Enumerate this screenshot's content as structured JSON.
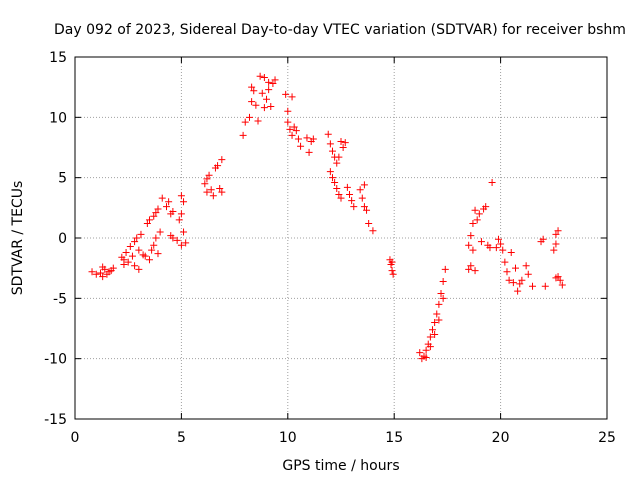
{
  "chart_data": {
    "type": "scatter",
    "title": "Day 092 of 2023, Sidereal Day-to-day VTEC variation (SDTVAR) for receiver bshm",
    "xlabel": "GPS time / hours",
    "ylabel": "SDTVAR / TECUs",
    "xlim": [
      0,
      25
    ],
    "ylim": [
      -15,
      15
    ],
    "xticks": [
      0,
      5,
      10,
      15,
      20,
      25
    ],
    "yticks": [
      -15,
      -10,
      -5,
      0,
      5,
      10,
      15
    ],
    "xtick_labels": [
      "0",
      "5",
      "10",
      "15",
      "20",
      "25"
    ],
    "ytick_labels": [
      "-15",
      "-10",
      "-5",
      "0",
      "5",
      "10",
      "15"
    ],
    "grid": true,
    "marker": "+",
    "color": "#ff0000",
    "series": [
      {
        "name": "SDTVAR",
        "points": [
          [
            0.8,
            -2.8
          ],
          [
            1.0,
            -3.0
          ],
          [
            1.2,
            -2.9
          ],
          [
            1.3,
            -2.4
          ],
          [
            1.3,
            -3.2
          ],
          [
            1.4,
            -2.6
          ],
          [
            1.5,
            -3.0
          ],
          [
            1.6,
            -2.8
          ],
          [
            1.7,
            -2.7
          ],
          [
            1.8,
            -2.5
          ],
          [
            2.2,
            -1.6
          ],
          [
            2.3,
            -1.8
          ],
          [
            2.3,
            -2.2
          ],
          [
            2.4,
            -1.2
          ],
          [
            2.5,
            -2.0
          ],
          [
            2.6,
            -0.7
          ],
          [
            2.7,
            -1.5
          ],
          [
            2.8,
            -0.3
          ],
          [
            2.8,
            -2.3
          ],
          [
            2.9,
            0.0
          ],
          [
            3.0,
            -1.0
          ],
          [
            3.0,
            -2.6
          ],
          [
            3.1,
            0.3
          ],
          [
            3.2,
            -1.4
          ],
          [
            3.3,
            -1.5
          ],
          [
            3.4,
            1.2
          ],
          [
            3.5,
            1.5
          ],
          [
            3.5,
            -1.8
          ],
          [
            3.6,
            -1.0
          ],
          [
            3.7,
            1.8
          ],
          [
            3.7,
            -0.6
          ],
          [
            3.8,
            2.1
          ],
          [
            3.8,
            0.0
          ],
          [
            3.9,
            2.4
          ],
          [
            3.9,
            -1.3
          ],
          [
            4.0,
            0.5
          ],
          [
            4.1,
            3.3
          ],
          [
            4.3,
            2.6
          ],
          [
            4.4,
            3.0
          ],
          [
            4.5,
            2.0
          ],
          [
            4.5,
            0.2
          ],
          [
            4.6,
            2.2
          ],
          [
            4.6,
            0.0
          ],
          [
            4.8,
            -0.2
          ],
          [
            4.9,
            1.5
          ],
          [
            5.0,
            2.0
          ],
          [
            5.0,
            3.5
          ],
          [
            5.1,
            0.5
          ],
          [
            5.1,
            3.0
          ],
          [
            5.0,
            -0.6
          ],
          [
            5.2,
            -0.4
          ],
          [
            6.1,
            4.5
          ],
          [
            6.2,
            3.8
          ],
          [
            6.2,
            4.9
          ],
          [
            6.3,
            5.2
          ],
          [
            6.4,
            4.0
          ],
          [
            6.5,
            3.5
          ],
          [
            6.6,
            5.8
          ],
          [
            6.7,
            6.0
          ],
          [
            6.8,
            4.1
          ],
          [
            6.9,
            6.5
          ],
          [
            6.9,
            3.8
          ],
          [
            7.9,
            8.5
          ],
          [
            8.0,
            9.6
          ],
          [
            8.2,
            10.0
          ],
          [
            8.3,
            11.3
          ],
          [
            8.3,
            12.5
          ],
          [
            8.4,
            12.2
          ],
          [
            8.5,
            11.0
          ],
          [
            8.6,
            9.7
          ],
          [
            8.7,
            13.4
          ],
          [
            8.8,
            12.0
          ],
          [
            8.9,
            10.8
          ],
          [
            8.9,
            13.3
          ],
          [
            9.0,
            11.5
          ],
          [
            9.1,
            12.9
          ],
          [
            9.1,
            12.3
          ],
          [
            9.2,
            10.9
          ],
          [
            9.3,
            12.8
          ],
          [
            9.4,
            13.1
          ],
          [
            9.9,
            11.9
          ],
          [
            10.0,
            10.5
          ],
          [
            10.0,
            9.6
          ],
          [
            10.1,
            9.0
          ],
          [
            10.2,
            8.5
          ],
          [
            10.2,
            11.7
          ],
          [
            10.3,
            9.2
          ],
          [
            10.4,
            8.9
          ],
          [
            10.5,
            8.2
          ],
          [
            10.6,
            7.6
          ],
          [
            10.9,
            8.3
          ],
          [
            11.0,
            7.1
          ],
          [
            11.1,
            8.0
          ],
          [
            11.2,
            8.2
          ],
          [
            11.9,
            8.6
          ],
          [
            12.0,
            7.8
          ],
          [
            12.1,
            7.2
          ],
          [
            12.2,
            6.7
          ],
          [
            12.3,
            6.2
          ],
          [
            12.4,
            6.7
          ],
          [
            12.5,
            8.0
          ],
          [
            12.6,
            7.5
          ],
          [
            12.7,
            7.9
          ],
          [
            12.0,
            5.5
          ],
          [
            12.1,
            5.0
          ],
          [
            12.2,
            4.6
          ],
          [
            12.3,
            4.1
          ],
          [
            12.4,
            3.6
          ],
          [
            12.5,
            3.3
          ],
          [
            12.8,
            4.2
          ],
          [
            12.9,
            3.6
          ],
          [
            13.0,
            3.1
          ],
          [
            13.1,
            2.6
          ],
          [
            13.4,
            4.0
          ],
          [
            13.5,
            3.3
          ],
          [
            13.6,
            2.6
          ],
          [
            13.7,
            2.3
          ],
          [
            13.8,
            1.2
          ],
          [
            14.0,
            0.6
          ],
          [
            13.6,
            4.4
          ],
          [
            14.8,
            -1.8
          ],
          [
            14.85,
            -2.2
          ],
          [
            14.9,
            -2.7
          ],
          [
            14.95,
            -3.0
          ],
          [
            14.9,
            -2.0
          ],
          [
            16.2,
            -9.5
          ],
          [
            16.3,
            -10.0
          ],
          [
            16.4,
            -9.8
          ],
          [
            16.5,
            -9.3
          ],
          [
            16.6,
            -8.8
          ],
          [
            16.7,
            -8.2
          ],
          [
            16.8,
            -7.6
          ],
          [
            16.9,
            -7.0
          ],
          [
            17.0,
            -6.3
          ],
          [
            17.1,
            -5.5
          ],
          [
            17.2,
            -4.6
          ],
          [
            17.3,
            -3.6
          ],
          [
            17.4,
            -2.6
          ],
          [
            16.5,
            -9.9
          ],
          [
            16.7,
            -9.0
          ],
          [
            16.9,
            -8.0
          ],
          [
            17.1,
            -6.8
          ],
          [
            17.3,
            -5.0
          ],
          [
            18.5,
            -2.6
          ],
          [
            18.5,
            -0.6
          ],
          [
            18.6,
            0.2
          ],
          [
            18.6,
            -2.3
          ],
          [
            18.7,
            1.2
          ],
          [
            18.7,
            -1.0
          ],
          [
            18.8,
            2.3
          ],
          [
            18.8,
            -2.7
          ],
          [
            18.9,
            1.5
          ],
          [
            19.0,
            2.0
          ],
          [
            19.1,
            -0.3
          ],
          [
            19.2,
            2.4
          ],
          [
            19.3,
            2.6
          ],
          [
            19.4,
            -0.6
          ],
          [
            19.5,
            -0.8
          ],
          [
            19.6,
            4.6
          ],
          [
            19.8,
            -0.8
          ],
          [
            19.9,
            -0.1
          ],
          [
            20.0,
            -0.5
          ],
          [
            20.1,
            -1.0
          ],
          [
            20.2,
            -2.0
          ],
          [
            20.3,
            -2.8
          ],
          [
            20.4,
            -3.5
          ],
          [
            20.5,
            -1.2
          ],
          [
            20.6,
            -3.7
          ],
          [
            20.7,
            -2.5
          ],
          [
            20.8,
            -4.4
          ],
          [
            20.9,
            -3.8
          ],
          [
            21.0,
            -3.5
          ],
          [
            21.2,
            -2.3
          ],
          [
            21.3,
            -3.0
          ],
          [
            21.5,
            -4.0
          ],
          [
            21.9,
            -0.3
          ],
          [
            22.0,
            -0.1
          ],
          [
            22.1,
            -4.0
          ],
          [
            22.5,
            -1.0
          ],
          [
            22.6,
            -0.5
          ],
          [
            22.6,
            0.3
          ],
          [
            22.7,
            0.6
          ],
          [
            22.6,
            -3.3
          ],
          [
            22.8,
            -3.5
          ],
          [
            22.9,
            -3.9
          ],
          [
            22.7,
            -3.2
          ]
        ]
      }
    ]
  }
}
